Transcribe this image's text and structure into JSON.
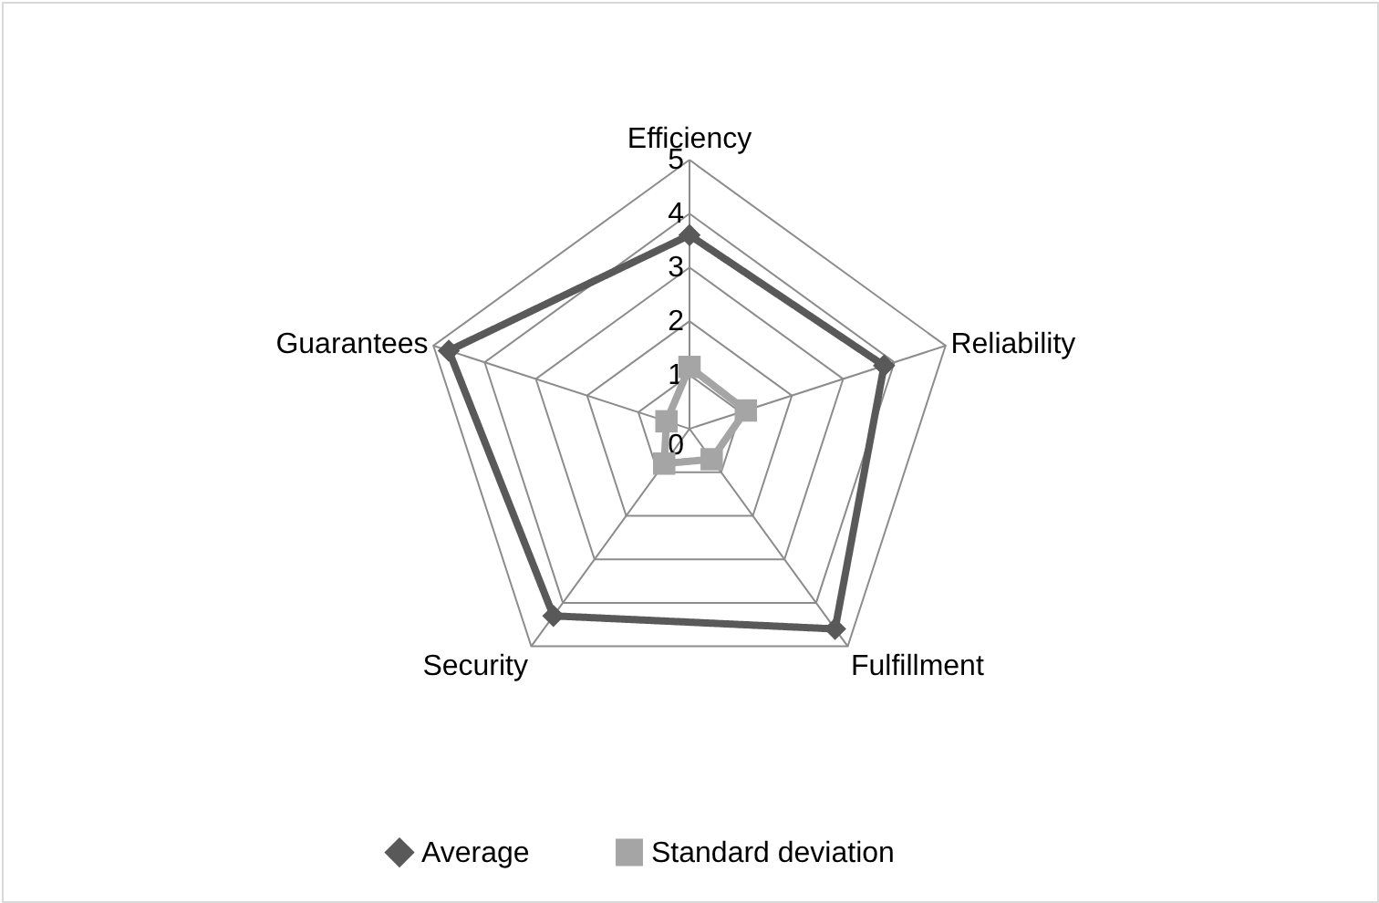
{
  "chart_data": {
    "type": "radar",
    "categories": [
      "Efficiency",
      "Reliability",
      "Fulfillment",
      "Security",
      "Guarantees"
    ],
    "series": [
      {
        "name": "Average",
        "color": "#595959",
        "marker": "diamond",
        "values": [
          3.6,
          3.8,
          4.6,
          4.3,
          4.7
        ]
      },
      {
        "name": "Standard deviation",
        "color": "#a5a5a5",
        "marker": "square",
        "values": [
          1.15,
          1.1,
          0.7,
          0.8,
          0.45
        ]
      }
    ],
    "ylim": [
      0,
      5
    ],
    "yticks": [
      0,
      1,
      2,
      3,
      4,
      5
    ],
    "grid": true,
    "legend": "bottom",
    "line_style": "solid"
  }
}
